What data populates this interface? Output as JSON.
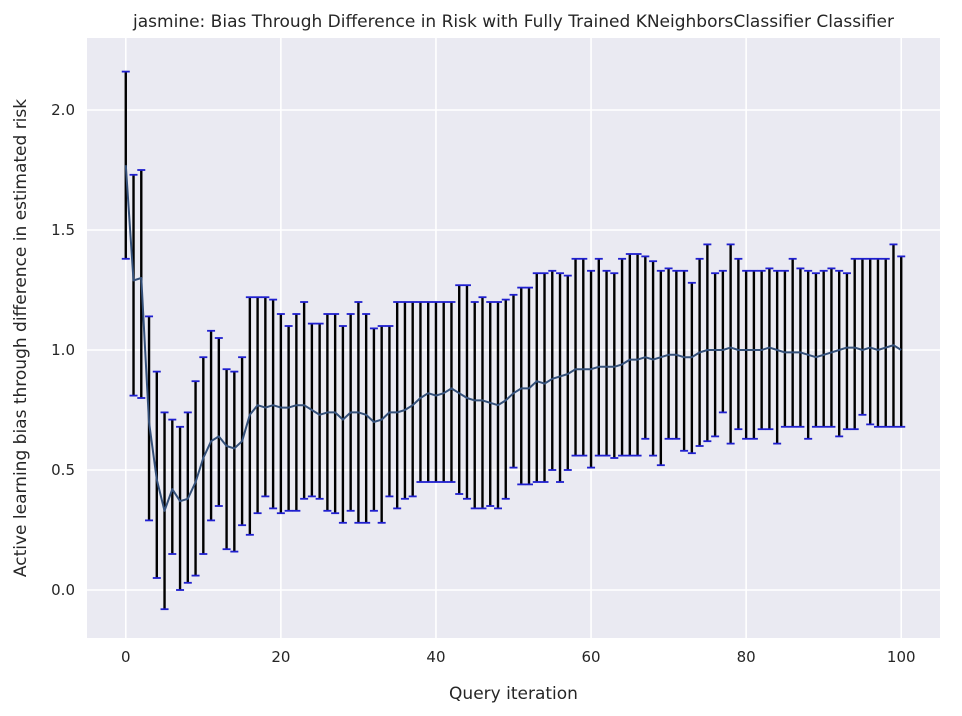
{
  "chart_data": {
    "type": "line",
    "title": "jasmine: Bias Through Difference in Risk with Fully Trained KNeighborsClassifier Classifier",
    "xlabel": "Query iteration",
    "ylabel": "Active learning bias through difference in estimated risk",
    "xlim": [
      -5,
      105
    ],
    "ylim": [
      -0.2,
      2.3
    ],
    "xticks": [
      0,
      20,
      40,
      60,
      80,
      100
    ],
    "yticks": [
      0.0,
      0.5,
      1.0,
      1.5,
      2.0
    ],
    "xtick_labels": [
      "0",
      "20",
      "40",
      "60",
      "80",
      "100"
    ],
    "ytick_labels": [
      "0.0",
      "0.5",
      "1.0",
      "1.5",
      "2.0"
    ],
    "grid": true,
    "colors": {
      "background": "#eaeaf2",
      "grid": "#ffffff",
      "line": "#34507a",
      "errorbar": "#000000",
      "cap": "#1f1fcf"
    },
    "series": [
      {
        "x": [
          0,
          1,
          2,
          3,
          4,
          5,
          6,
          7,
          8,
          9,
          10,
          11,
          12,
          13,
          14,
          15,
          16,
          17,
          18,
          19,
          20,
          21,
          22,
          23,
          24,
          25,
          26,
          27,
          28,
          29,
          30,
          31,
          32,
          33,
          34,
          35,
          36,
          37,
          38,
          39,
          40,
          41,
          42,
          43,
          44,
          45,
          46,
          47,
          48,
          49,
          50,
          51,
          52,
          53,
          54,
          55,
          56,
          57,
          58,
          59,
          60,
          61,
          62,
          63,
          64,
          65,
          66,
          67,
          68,
          69,
          70,
          71,
          72,
          73,
          74,
          75,
          76,
          77,
          78,
          79,
          80,
          81,
          82,
          83,
          84,
          85,
          86,
          87,
          88,
          89,
          90,
          91,
          92,
          93,
          94,
          95,
          96,
          97,
          98,
          99,
          100
        ],
        "y": [
          1.77,
          1.29,
          1.3,
          0.7,
          0.46,
          0.33,
          0.42,
          0.37,
          0.38,
          0.45,
          0.55,
          0.62,
          0.64,
          0.6,
          0.59,
          0.62,
          0.73,
          0.77,
          0.76,
          0.77,
          0.76,
          0.76,
          0.77,
          0.77,
          0.75,
          0.73,
          0.74,
          0.74,
          0.71,
          0.74,
          0.74,
          0.73,
          0.7,
          0.71,
          0.74,
          0.74,
          0.75,
          0.77,
          0.8,
          0.82,
          0.81,
          0.82,
          0.84,
          0.82,
          0.8,
          0.79,
          0.79,
          0.78,
          0.77,
          0.79,
          0.82,
          0.84,
          0.84,
          0.87,
          0.86,
          0.88,
          0.89,
          0.9,
          0.92,
          0.92,
          0.92,
          0.93,
          0.93,
          0.93,
          0.94,
          0.96,
          0.96,
          0.97,
          0.96,
          0.97,
          0.98,
          0.98,
          0.97,
          0.97,
          0.99,
          1.0,
          1.0,
          1.0,
          1.01,
          1.0,
          1.0,
          1.0,
          1.0,
          1.01,
          1.0,
          0.99,
          0.99,
          0.99,
          0.98,
          0.97,
          0.98,
          0.99,
          1.0,
          1.01,
          1.01,
          1.0,
          1.01,
          1.0,
          1.01,
          1.02,
          1.0
        ],
        "err_low": [
          1.38,
          0.81,
          0.8,
          0.29,
          0.05,
          -0.08,
          0.15,
          0.0,
          0.03,
          0.06,
          0.15,
          0.29,
          0.35,
          0.17,
          0.16,
          0.27,
          0.23,
          0.32,
          0.39,
          0.34,
          0.32,
          0.33,
          0.33,
          0.38,
          0.39,
          0.38,
          0.33,
          0.32,
          0.28,
          0.33,
          0.28,
          0.28,
          0.33,
          0.28,
          0.39,
          0.34,
          0.38,
          0.39,
          0.45,
          0.45,
          0.45,
          0.45,
          0.45,
          0.4,
          0.38,
          0.34,
          0.34,
          0.35,
          0.34,
          0.38,
          0.51,
          0.44,
          0.44,
          0.45,
          0.45,
          0.5,
          0.45,
          0.5,
          0.56,
          0.56,
          0.51,
          0.56,
          0.56,
          0.55,
          0.56,
          0.56,
          0.56,
          0.63,
          0.56,
          0.52,
          0.63,
          0.63,
          0.58,
          0.57,
          0.6,
          0.62,
          0.64,
          0.74,
          0.61,
          0.67,
          0.63,
          0.63,
          0.67,
          0.67,
          0.61,
          0.68,
          0.68,
          0.68,
          0.63,
          0.68,
          0.68,
          0.68,
          0.64,
          0.67,
          0.67,
          0.73,
          0.69,
          0.68,
          0.68,
          0.68,
          0.68
        ],
        "err_high": [
          2.16,
          1.73,
          1.75,
          1.14,
          0.91,
          0.74,
          0.71,
          0.68,
          0.74,
          0.87,
          0.97,
          1.08,
          1.05,
          0.92,
          0.91,
          0.97,
          1.22,
          1.22,
          1.22,
          1.21,
          1.15,
          1.1,
          1.15,
          1.2,
          1.11,
          1.11,
          1.15,
          1.15,
          1.1,
          1.15,
          1.2,
          1.15,
          1.09,
          1.1,
          1.1,
          1.2,
          1.2,
          1.2,
          1.2,
          1.2,
          1.2,
          1.2,
          1.2,
          1.27,
          1.27,
          1.2,
          1.22,
          1.2,
          1.2,
          1.21,
          1.23,
          1.26,
          1.26,
          1.32,
          1.32,
          1.33,
          1.32,
          1.31,
          1.38,
          1.38,
          1.33,
          1.38,
          1.33,
          1.32,
          1.38,
          1.4,
          1.4,
          1.39,
          1.37,
          1.33,
          1.34,
          1.33,
          1.33,
          1.28,
          1.38,
          1.44,
          1.32,
          1.33,
          1.44,
          1.38,
          1.33,
          1.33,
          1.33,
          1.34,
          1.33,
          1.33,
          1.38,
          1.34,
          1.33,
          1.32,
          1.33,
          1.34,
          1.33,
          1.32,
          1.38,
          1.38,
          1.38,
          1.38,
          1.38,
          1.44,
          1.39
        ]
      }
    ]
  }
}
